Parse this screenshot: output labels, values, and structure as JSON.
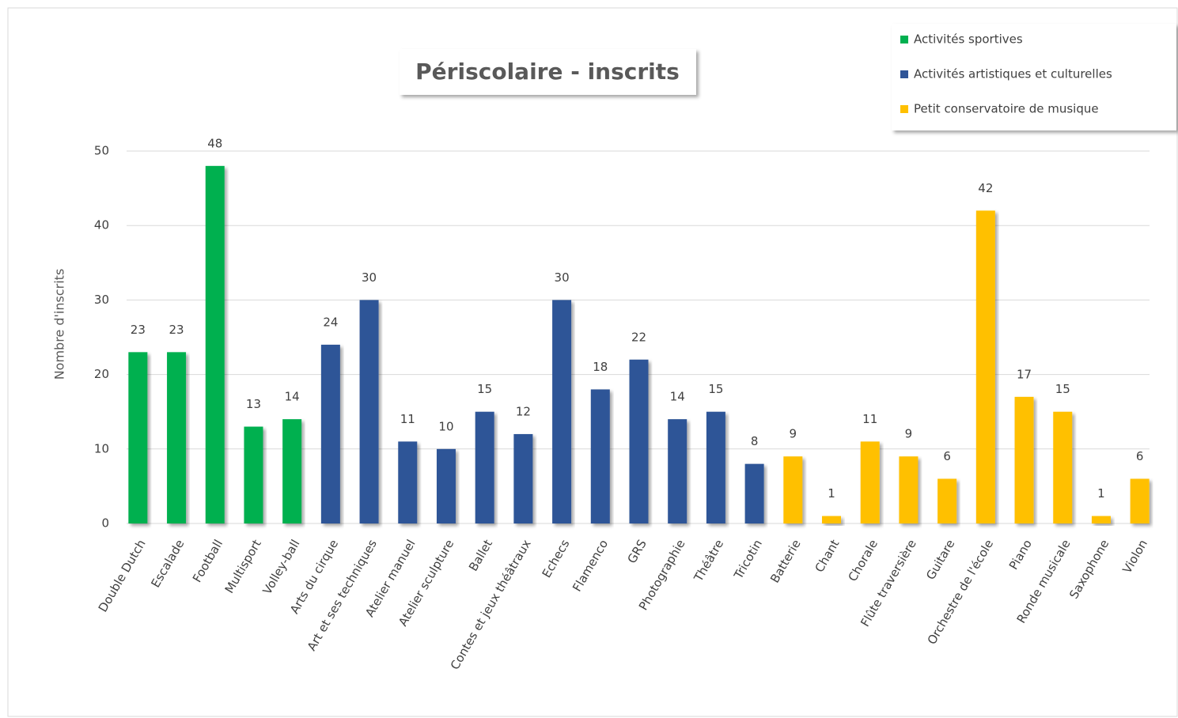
{
  "chart_data": {
    "type": "bar",
    "title": "Périscolaire  - inscrits",
    "y_label": "Nombre d'inscrits",
    "categories": [
      "Double Dutch",
      "Escalade",
      "Football",
      "Multisport",
      "Volley-ball",
      "Arts du cirque",
      "Art et ses techniques",
      "Atelier manuel",
      "Atelier sculpture",
      "Ballet",
      "Contes et jeux théâtraux",
      "Echecs",
      "Flamenco",
      "GRS",
      "Photographie",
      "Théâtre",
      "Tricotin",
      "Batterie",
      "Chant",
      "Chorale",
      "Flûte traversière",
      "Guitare",
      "Orchestre de l'école",
      "Piano",
      "Ronde musicale",
      "Saxophone",
      "Violon"
    ],
    "series": [
      {
        "name": "Activités sportives",
        "color": "#00b050",
        "values": [
          23,
          23,
          48,
          13,
          14,
          null,
          null,
          null,
          null,
          null,
          null,
          null,
          null,
          null,
          null,
          null,
          null,
          null,
          null,
          null,
          null,
          null,
          null,
          null,
          null,
          null,
          null
        ]
      },
      {
        "name": "Activités artistiques et culturelles",
        "color": "#2f5597",
        "values": [
          null,
          null,
          null,
          null,
          null,
          24,
          30,
          11,
          10,
          15,
          12,
          30,
          18,
          22,
          14,
          15,
          8,
          null,
          null,
          null,
          null,
          null,
          null,
          null,
          null,
          null,
          null
        ]
      },
      {
        "name": "Petit conservatoire de musique",
        "color": "#ffc000",
        "values": [
          null,
          null,
          null,
          null,
          null,
          null,
          null,
          null,
          null,
          null,
          null,
          null,
          null,
          null,
          null,
          null,
          null,
          9,
          1,
          11,
          9,
          6,
          42,
          17,
          15,
          1,
          6
        ]
      }
    ],
    "ylim": [
      0,
      50
    ],
    "yticks": [
      0,
      10,
      20,
      30,
      40,
      50
    ],
    "grid": true,
    "legend": "top-right"
  }
}
